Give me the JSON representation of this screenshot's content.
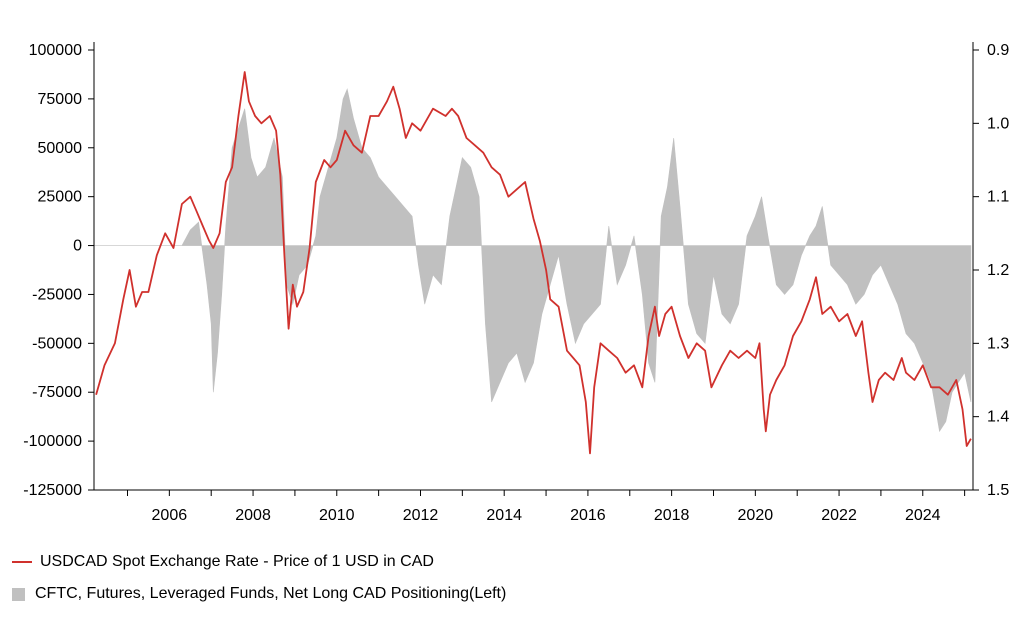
{
  "chart_data": {
    "type": "line",
    "x_range": [
      2004.2,
      2025.2
    ],
    "x_ticks": [
      "2006",
      "2008",
      "2010",
      "2012",
      "2014",
      "2016",
      "2018",
      "2020",
      "2022",
      "2024"
    ],
    "y_left": {
      "range": [
        -125000,
        100000
      ],
      "ticks": [
        "100000",
        "75000",
        "50000",
        "25000",
        "0",
        "-25000",
        "-50000",
        "-75000",
        "-100000",
        "-125000"
      ]
    },
    "y_right": {
      "range": [
        0.9,
        1.5
      ],
      "inverted": true,
      "ticks": [
        "0.9",
        "1.0",
        "1.1",
        "1.2",
        "1.3",
        "1.4",
        "1.5"
      ]
    },
    "grid": false,
    "legend_position": "bottom-left",
    "series": [
      {
        "name": "USDCAD Spot Exchange Rate - Price of 1 USD in CAD",
        "axis": "right",
        "color": "#d0312d",
        "x": [
          2004.25,
          2004.45,
          2004.7,
          2004.9,
          2005.05,
          2005.2,
          2005.35,
          2005.5,
          2005.7,
          2005.9,
          2006.1,
          2006.3,
          2006.5,
          2006.65,
          2006.8,
          2006.95,
          2007.05,
          2007.2,
          2007.35,
          2007.5,
          2007.65,
          2007.8,
          2007.9,
          2008.05,
          2008.2,
          2008.4,
          2008.55,
          2008.65,
          2008.75,
          2008.85,
          2008.95,
          2009.05,
          2009.2,
          2009.35,
          2009.5,
          2009.7,
          2009.85,
          2010.0,
          2010.2,
          2010.4,
          2010.6,
          2010.8,
          2011.0,
          2011.2,
          2011.35,
          2011.5,
          2011.65,
          2011.8,
          2012.0,
          2012.3,
          2012.6,
          2012.75,
          2012.9,
          2013.1,
          2013.3,
          2013.5,
          2013.7,
          2013.9,
          2014.1,
          2014.3,
          2014.5,
          2014.7,
          2014.85,
          2015.0,
          2015.1,
          2015.3,
          2015.5,
          2015.65,
          2015.8,
          2015.95,
          2016.05,
          2016.15,
          2016.3,
          2016.5,
          2016.7,
          2016.9,
          2017.1,
          2017.3,
          2017.45,
          2017.6,
          2017.7,
          2017.85,
          2018.0,
          2018.2,
          2018.4,
          2018.6,
          2018.8,
          2018.95,
          2019.2,
          2019.4,
          2019.6,
          2019.8,
          2020.0,
          2020.1,
          2020.2,
          2020.25,
          2020.35,
          2020.5,
          2020.7,
          2020.9,
          2021.1,
          2021.3,
          2021.45,
          2021.6,
          2021.8,
          2022.0,
          2022.2,
          2022.4,
          2022.55,
          2022.7,
          2022.8,
          2022.95,
          2023.1,
          2023.3,
          2023.5,
          2023.6,
          2023.8,
          2024.0,
          2024.2,
          2024.4,
          2024.6,
          2024.8,
          2024.95,
          2025.05,
          2025.15
        ],
        "y": [
          1.37,
          1.33,
          1.3,
          1.24,
          1.2,
          1.25,
          1.23,
          1.23,
          1.18,
          1.15,
          1.17,
          1.11,
          1.1,
          1.12,
          1.14,
          1.16,
          1.17,
          1.15,
          1.08,
          1.06,
          0.99,
          0.93,
          0.97,
          0.99,
          1.0,
          0.99,
          1.01,
          1.07,
          1.18,
          1.28,
          1.22,
          1.25,
          1.23,
          1.17,
          1.08,
          1.05,
          1.06,
          1.05,
          1.01,
          1.03,
          1.04,
          0.99,
          0.99,
          0.97,
          0.95,
          0.98,
          1.02,
          1.0,
          1.01,
          0.98,
          0.99,
          0.98,
          0.99,
          1.02,
          1.03,
          1.04,
          1.06,
          1.07,
          1.1,
          1.09,
          1.08,
          1.13,
          1.16,
          1.2,
          1.24,
          1.25,
          1.31,
          1.32,
          1.33,
          1.38,
          1.45,
          1.36,
          1.3,
          1.31,
          1.32,
          1.34,
          1.33,
          1.36,
          1.29,
          1.25,
          1.29,
          1.26,
          1.25,
          1.29,
          1.32,
          1.3,
          1.31,
          1.36,
          1.33,
          1.31,
          1.32,
          1.31,
          1.32,
          1.3,
          1.39,
          1.42,
          1.37,
          1.35,
          1.33,
          1.29,
          1.27,
          1.24,
          1.21,
          1.26,
          1.25,
          1.27,
          1.26,
          1.29,
          1.27,
          1.34,
          1.38,
          1.35,
          1.34,
          1.35,
          1.32,
          1.34,
          1.35,
          1.33,
          1.36,
          1.36,
          1.37,
          1.35,
          1.39,
          1.44,
          1.43
        ]
      },
      {
        "name": "CFTC, Futures, Leveraged Funds, Net Long CAD Positioning(Left)",
        "axis": "left",
        "type": "area",
        "color": "#c0c0c0",
        "x": [
          2004.2,
          2006.3,
          2006.5,
          2006.7,
          2006.9,
          2007.0,
          2007.05,
          2007.15,
          2007.25,
          2007.35,
          2007.5,
          2007.65,
          2007.8,
          2007.95,
          2008.1,
          2008.3,
          2008.5,
          2008.7,
          2008.8,
          2008.95,
          2009.1,
          2009.3,
          2009.5,
          2009.6,
          2009.8,
          2010.0,
          2010.15,
          2010.25,
          2010.4,
          2010.6,
          2010.8,
          2011.0,
          2011.2,
          2011.4,
          2011.6,
          2011.8,
          2011.95,
          2012.1,
          2012.3,
          2012.5,
          2012.7,
          2012.85,
          2013.0,
          2013.2,
          2013.4,
          2013.55,
          2013.7,
          2013.9,
          2014.1,
          2014.3,
          2014.5,
          2014.7,
          2014.9,
          2015.1,
          2015.3,
          2015.5,
          2015.7,
          2015.9,
          2016.1,
          2016.3,
          2016.5,
          2016.7,
          2016.9,
          2017.1,
          2017.3,
          2017.45,
          2017.6,
          2017.75,
          2017.9,
          2018.05,
          2018.2,
          2018.4,
          2018.6,
          2018.8,
          2019.0,
          2019.2,
          2019.4,
          2019.6,
          2019.8,
          2020.0,
          2020.15,
          2020.3,
          2020.5,
          2020.7,
          2020.9,
          2021.1,
          2021.3,
          2021.45,
          2021.6,
          2021.8,
          2022.0,
          2022.2,
          2022.4,
          2022.6,
          2022.8,
          2023.0,
          2023.2,
          2023.4,
          2023.6,
          2023.8,
          2024.0,
          2024.2,
          2024.4,
          2024.55,
          2024.7,
          2024.85,
          2025.0,
          2025.15
        ],
        "y": [
          0,
          0,
          8000,
          12000,
          -20000,
          -40000,
          -75000,
          -55000,
          -25000,
          10000,
          50000,
          60000,
          70000,
          45000,
          35000,
          40000,
          55000,
          35000,
          -20000,
          -30000,
          -15000,
          -10000,
          5000,
          25000,
          40000,
          55000,
          75000,
          80000,
          65000,
          50000,
          45000,
          35000,
          30000,
          25000,
          20000,
          15000,
          -10000,
          -30000,
          -15000,
          -20000,
          15000,
          30000,
          45000,
          40000,
          25000,
          -40000,
          -80000,
          -70000,
          -60000,
          -55000,
          -70000,
          -60000,
          -35000,
          -20000,
          -5000,
          -30000,
          -50000,
          -40000,
          -35000,
          -30000,
          10000,
          -20000,
          -10000,
          5000,
          -25000,
          -60000,
          -70000,
          15000,
          30000,
          55000,
          20000,
          -30000,
          -45000,
          -50000,
          -15000,
          -35000,
          -40000,
          -30000,
          5000,
          15000,
          25000,
          5000,
          -20000,
          -25000,
          -20000,
          -5000,
          5000,
          10000,
          20000,
          -10000,
          -15000,
          -20000,
          -30000,
          -25000,
          -15000,
          -10000,
          -20000,
          -30000,
          -45000,
          -50000,
          -60000,
          -70000,
          -95000,
          -90000,
          -75000,
          -70000,
          -65000,
          -80000
        ]
      }
    ]
  },
  "legend": {
    "items": [
      {
        "label": "USDCAD Spot Exchange Rate - Price of 1 USD in CAD",
        "color": "#d0312d"
      },
      {
        "label": "CFTC, Futures, Leveraged Funds, Net Long CAD Positioning(Left)",
        "color": "#c0c0c0"
      }
    ]
  }
}
